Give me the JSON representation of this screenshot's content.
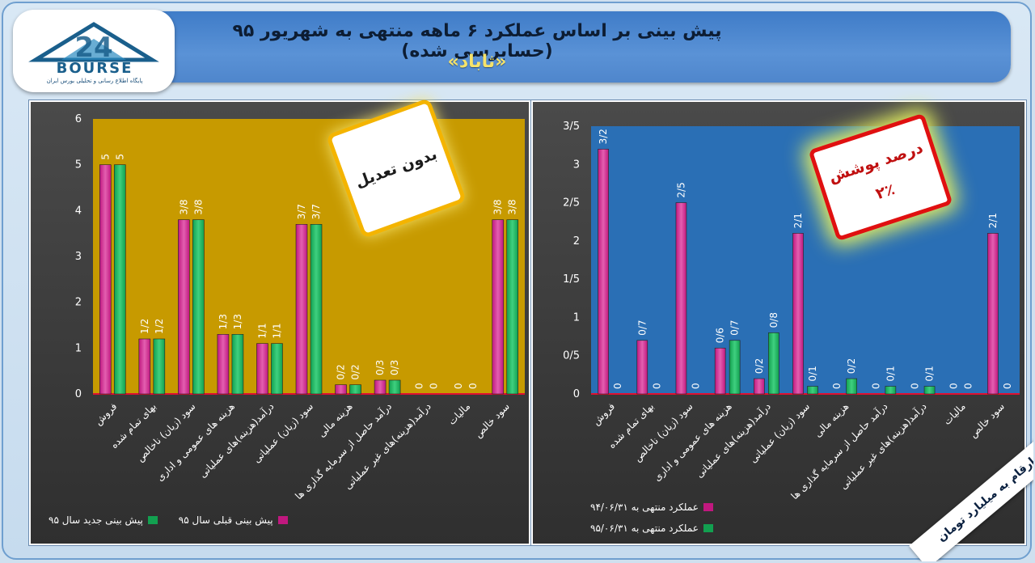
{
  "header": {
    "title_line1": "پیش بینی بر اساس عملکرد ۶ ماهه منتهی به شهریور ۹۵ (حسابرسی شده)",
    "title_line2": "«ثاباد»"
  },
  "logo": {
    "word": "BOURSE",
    "subtitle": "پایگاه اطلاع رسانی و تحلیلی بورس ایران",
    "number": "24"
  },
  "stamps": {
    "left": "بدون تعدیل",
    "right_line1": "درصد پوشش",
    "right_line2": "۲٪"
  },
  "corner_note": "ارقام به میلیارد تومان",
  "colors": {
    "magenta": "#c0187f",
    "green": "#12a050",
    "left_plot_bg": "#c79a00",
    "right_plot_bg": "#2a6fb5"
  },
  "chart_data": [
    {
      "type": "bar",
      "categories": [
        "فروش",
        "بهای تمام شده",
        "سود (زیان) ناخالص",
        "هزینه های عمومی و اداری",
        "درآمد(هزینه)های عملیاتی",
        "سود (زیان) عملیاتی",
        "هزینه مالی",
        "درآمد حاصل از سرمایه گذاری ها",
        "درآمد(هزینه)های غیر عملیاتی",
        "مالیات",
        "سود خالص"
      ],
      "series": [
        {
          "name": "پیش بینی قبلی سال ۹۵",
          "values": [
            5,
            1.2,
            3.8,
            1.3,
            1.1,
            3.7,
            0.2,
            0.3,
            0,
            0,
            3.8
          ],
          "labels": [
            "5",
            "1/2",
            "3/8",
            "1/3",
            "1/1",
            "3/7",
            "0/2",
            "0/3",
            "0",
            "0",
            "3/8"
          ],
          "color": "#c0187f"
        },
        {
          "name": "پیش بینی جدید سال ۹۵",
          "values": [
            5,
            1.2,
            3.8,
            1.3,
            1.1,
            3.7,
            0.2,
            0.3,
            0,
            0,
            3.8
          ],
          "labels": [
            "5",
            "1/2",
            "3/8",
            "1/3",
            "1/1",
            "3/7",
            "0/2",
            "0/3",
            "0",
            "0",
            "3/8"
          ],
          "color": "#12a050"
        }
      ],
      "ylim": [
        0,
        6
      ],
      "yticks": [
        "0",
        "1",
        "2",
        "3",
        "4",
        "5",
        "6"
      ],
      "legend": "bottom"
    },
    {
      "type": "bar",
      "categories": [
        "فروش",
        "بهای تمام شده",
        "سود (زیان) ناخالص",
        "هزینه های عمومی و اداری",
        "درآمد(هزینه)های عملیاتی",
        "سود (زیان) عملیاتی",
        "هزینه مالی",
        "درآمد حاصل از سرمایه گذاری ها",
        "درآمد(هزینه)های غیر عملیاتی",
        "مالیات",
        "سود خالص"
      ],
      "series": [
        {
          "name": "عملکرد منتهی به ۹۴/۰۶/۳۱",
          "values": [
            3.2,
            0.7,
            2.5,
            0.6,
            0.2,
            2.1,
            0,
            0,
            0,
            0,
            2.1
          ],
          "labels": [
            "3/2",
            "0/7",
            "2/5",
            "0/6",
            "0/2",
            "2/1",
            "0",
            "0",
            "0",
            "0",
            "2/1"
          ],
          "color": "#c0187f"
        },
        {
          "name": "عملکرد منتهی به ۹۵/۰۶/۳۱",
          "values": [
            0,
            0,
            0,
            0.7,
            0.8,
            0.1,
            0.2,
            0.1,
            0.1,
            0,
            0
          ],
          "labels": [
            "0",
            "0",
            "0",
            "0/7",
            "0/8",
            "0/1",
            "0/2",
            "0/1",
            "0/1",
            "0",
            "0"
          ],
          "color": "#12a050"
        }
      ],
      "ylim": [
        0,
        3.5
      ],
      "yticks": [
        "0",
        "0/5",
        "1",
        "1/5",
        "2",
        "2/5",
        "3",
        "3/5"
      ],
      "legend": "bottom-left"
    }
  ]
}
